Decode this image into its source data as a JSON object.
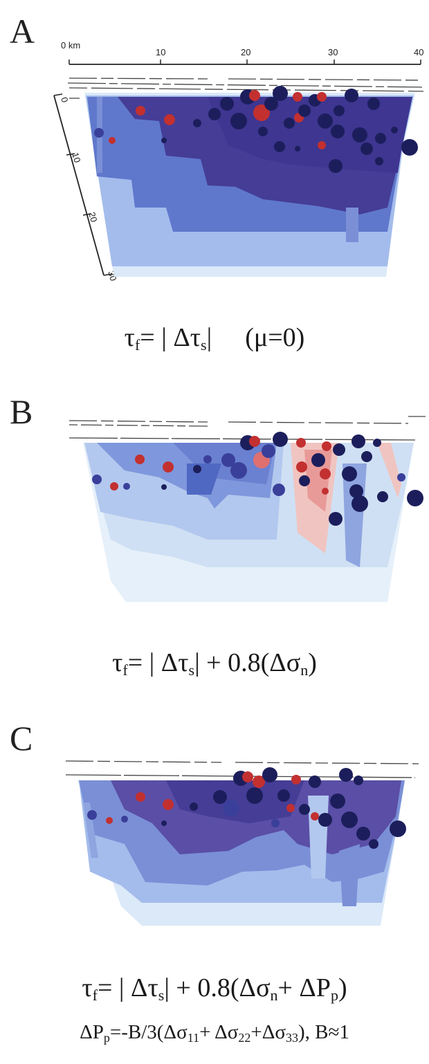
{
  "panels": [
    {
      "letter": "A",
      "formula": {
        "lhs": "τ",
        "lhs_sub": "f",
        "mid": "= | Δτ",
        "mid_sub": "s",
        "rhs": "|",
        "note": "(μ=0)"
      }
    },
    {
      "letter": "B",
      "formula": {
        "lhs": "τ",
        "lhs_sub": "f",
        "mid": "= | Δτ",
        "mid_sub": "s",
        "rhs": "| + 0.8(Δσ",
        "rhs_sub": "n",
        "close": ")"
      }
    },
    {
      "letter": "C",
      "formula": {
        "lhs": "τ",
        "lhs_sub": "f",
        "mid": "= | Δτ",
        "mid_sub": "s",
        "rhs": "| + 0.8(Δσ",
        "rhs_sub": "n",
        "rhs2": "+ ΔP",
        "rhs2_sub": "p",
        "close": ")"
      },
      "formula2": {
        "a": "ΔP",
        "a_sub": "p",
        "b": "=-B/3(Δσ",
        "b_sub": "11",
        "c": "+ Δσ",
        "c_sub": "22",
        "d": "+Δσ",
        "d_sub": "33",
        "e": "), B≈1"
      }
    }
  ],
  "axes": {
    "distance_ticks": [
      "0 km",
      "10",
      "20",
      "30",
      "40"
    ],
    "depth_ticks": [
      "0",
      "10",
      "20",
      "30"
    ]
  },
  "colors": {
    "dark_violet": "#453d96",
    "mid_blue": "#5f78cc",
    "light_blue": "#a4bcec",
    "pale_blue": "#dbe9f8",
    "pink": "#e89a98",
    "event_navy": "#1c1e5c",
    "event_blue": "#3a3f9a",
    "event_red": "#c23030"
  }
}
